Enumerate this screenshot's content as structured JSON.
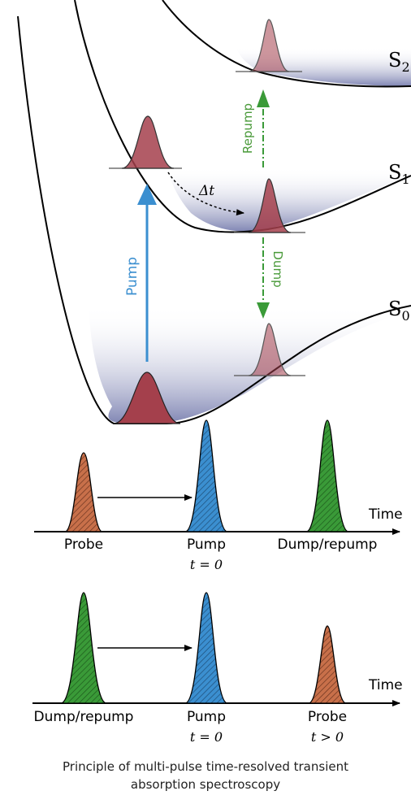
{
  "states": {
    "s0": {
      "base": "S",
      "sub": "0"
    },
    "s1": {
      "base": "S",
      "sub": "1"
    },
    "s2": {
      "base": "S",
      "sub": "2"
    }
  },
  "arrows": {
    "pump": "Pump",
    "repump": "Repump",
    "dump": "Dump",
    "delay": "Δt"
  },
  "timeline1": {
    "axis_label": "Time",
    "probe": "Probe",
    "pump": "Pump",
    "pump_time": "t = 0",
    "dump": "Dump/repump"
  },
  "timeline2": {
    "axis_label": "Time",
    "dump": "Dump/repump",
    "pump": "Pump",
    "pump_time": "t = 0",
    "probe": "Probe",
    "probe_time": "t > 0"
  },
  "caption": {
    "line1": "Principle of multi-pulse time-resolved transient",
    "line2": "absorption spectroscopy"
  },
  "colors": {
    "pump": "#3b8fd0",
    "dump": "#3a9a38",
    "probe": "#c8704a",
    "wavepacket": "#a4404c",
    "state_fill": "#8a90b8",
    "label_green": "#4a9a3a"
  }
}
